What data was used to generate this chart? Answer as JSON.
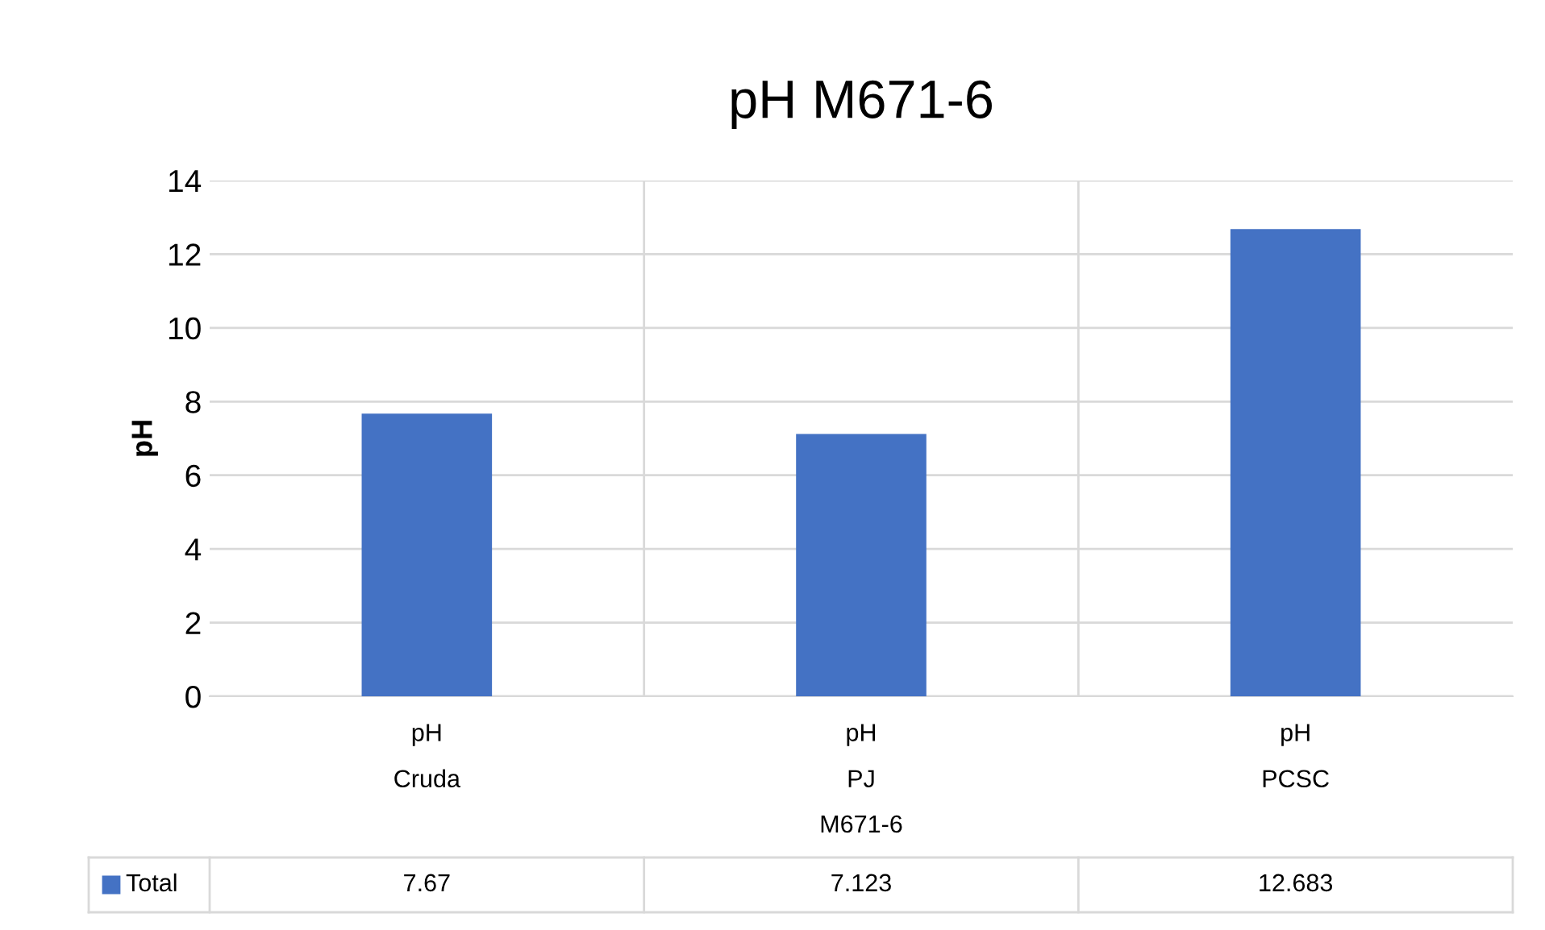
{
  "chart_data": {
    "type": "bar",
    "title": "pH M671-6",
    "ylabel": "pH",
    "xlabel": "M671-6",
    "categories": [
      "pH\nCruda",
      "pH\nPJ",
      "pH\nPCSC"
    ],
    "series": [
      {
        "name": "Total",
        "color": "#4472c4",
        "values": [
          7.67,
          7.123,
          12.683
        ]
      }
    ],
    "ylim": [
      0,
      14
    ],
    "yticks": [
      0,
      2,
      4,
      6,
      8,
      10,
      12,
      14
    ],
    "grid": "y",
    "data_labels": true,
    "legend": "bottom"
  }
}
